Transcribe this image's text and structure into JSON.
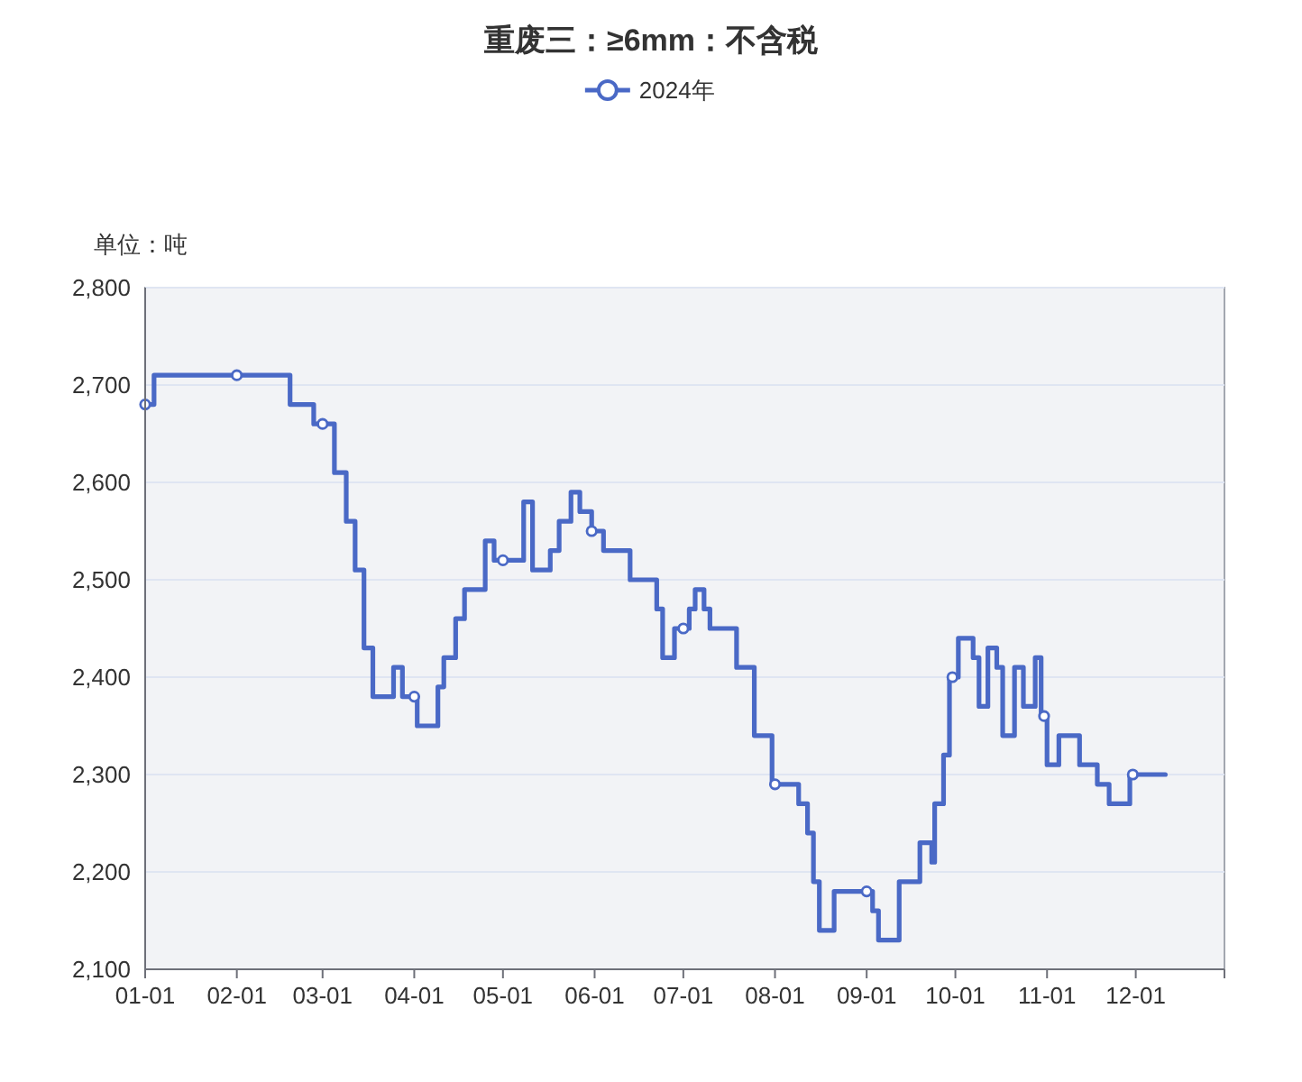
{
  "chart_data": {
    "type": "step",
    "title": "重废三：≥6mm：不含税",
    "ylabel": "单位：吨",
    "xlim": [
      "--01-01",
      "--12-31"
    ],
    "xticks": [
      {
        "value": "--01-01",
        "label": "01-01"
      },
      {
        "value": "--02-01",
        "label": "02-01"
      },
      {
        "value": "--03-01",
        "label": "03-01"
      },
      {
        "value": "--04-01",
        "label": "04-01"
      },
      {
        "value": "--05-01",
        "label": "05-01"
      },
      {
        "value": "--06-01",
        "label": "06-01"
      },
      {
        "value": "--07-01",
        "label": "07-01"
      },
      {
        "value": "--08-01",
        "label": "08-01"
      },
      {
        "value": "--09-01",
        "label": "09-01"
      },
      {
        "value": "--10-01",
        "label": "10-01"
      },
      {
        "value": "--11-01",
        "label": "11-01"
      },
      {
        "value": "--12-01",
        "label": "12-01"
      },
      {
        "value": "--12-31",
        "label": null
      }
    ],
    "ylim": [
      2100,
      2800
    ],
    "yticks": [
      {
        "value": 2100,
        "label": "2,100"
      },
      {
        "value": 2200,
        "label": "2,200"
      },
      {
        "value": 2300,
        "label": "2,300"
      },
      {
        "value": 2400,
        "label": "2,400"
      },
      {
        "value": 2500,
        "label": "2,500"
      },
      {
        "value": 2600,
        "label": "2,600"
      },
      {
        "value": 2700,
        "label": "2,700"
      },
      {
        "value": 2800,
        "label": "2,800"
      }
    ],
    "grid": "y",
    "legend": "top",
    "series": [
      {
        "name": "2024年",
        "color": "#4a69c6",
        "marker": "none",
        "x": [
          "--01-01",
          "--01-04",
          "--02-19",
          "--02-27",
          "--03-05",
          "--03-09",
          "--03-12",
          "--03-15",
          "--03-18",
          "--03-25",
          "--03-28",
          "--04-02",
          "--04-09",
          "--04-11",
          "--04-15",
          "--04-18",
          "--04-25",
          "--04-28",
          "--05-08",
          "--05-11",
          "--05-17",
          "--05-20",
          "--05-24",
          "--05-27",
          "--05-31",
          "--06-04",
          "--06-13",
          "--06-22",
          "--06-24",
          "--06-28",
          "--07-03",
          "--07-05",
          "--07-08",
          "--07-10",
          "--07-19",
          "--07-25",
          "--07-31",
          "--08-09",
          "--08-12",
          "--08-14",
          "--08-16",
          "--08-21",
          "--09-03",
          "--09-05",
          "--09-12",
          "--09-19",
          "--09-23",
          "--09-24",
          "--09-27",
          "--09-29",
          "--10-02",
          "--10-07",
          "--10-09",
          "--10-12",
          "--10-15",
          "--10-17",
          "--10-21",
          "--10-24",
          "--10-28",
          "--10-30",
          "--11-01",
          "--11-05",
          "--11-12",
          "--11-18",
          "--11-22",
          "--11-29",
          "--12-11"
        ],
        "values": [
          2680,
          2710,
          2680,
          2660,
          2610,
          2560,
          2510,
          2430,
          2380,
          2410,
          2380,
          2350,
          2390,
          2420,
          2460,
          2490,
          2540,
          2520,
          2580,
          2510,
          2530,
          2560,
          2590,
          2570,
          2550,
          2530,
          2500,
          2470,
          2420,
          2450,
          2470,
          2490,
          2470,
          2450,
          2410,
          2340,
          2290,
          2270,
          2240,
          2190,
          2140,
          2180,
          2160,
          2130,
          2190,
          2230,
          2210,
          2270,
          2320,
          2400,
          2440,
          2420,
          2370,
          2430,
          2410,
          2340,
          2410,
          2370,
          2420,
          2360,
          2310,
          2340,
          2310,
          2290,
          2270,
          2300,
          2300
        ]
      },
      {
        "type": "scatter",
        "color": "#4a69c6",
        "marker": "circle",
        "x": [
          "--01-01",
          "--02-01",
          "--03-01",
          "--04-01",
          "--05-01",
          "--05-31",
          "--07-01",
          "--08-01",
          "--09-01",
          "--09-30",
          "--10-31",
          "--11-30"
        ],
        "values": [
          2680,
          2710,
          2660,
          2380,
          2520,
          2550,
          2450,
          2290,
          2180,
          2400,
          2360,
          2300
        ]
      }
    ]
  }
}
